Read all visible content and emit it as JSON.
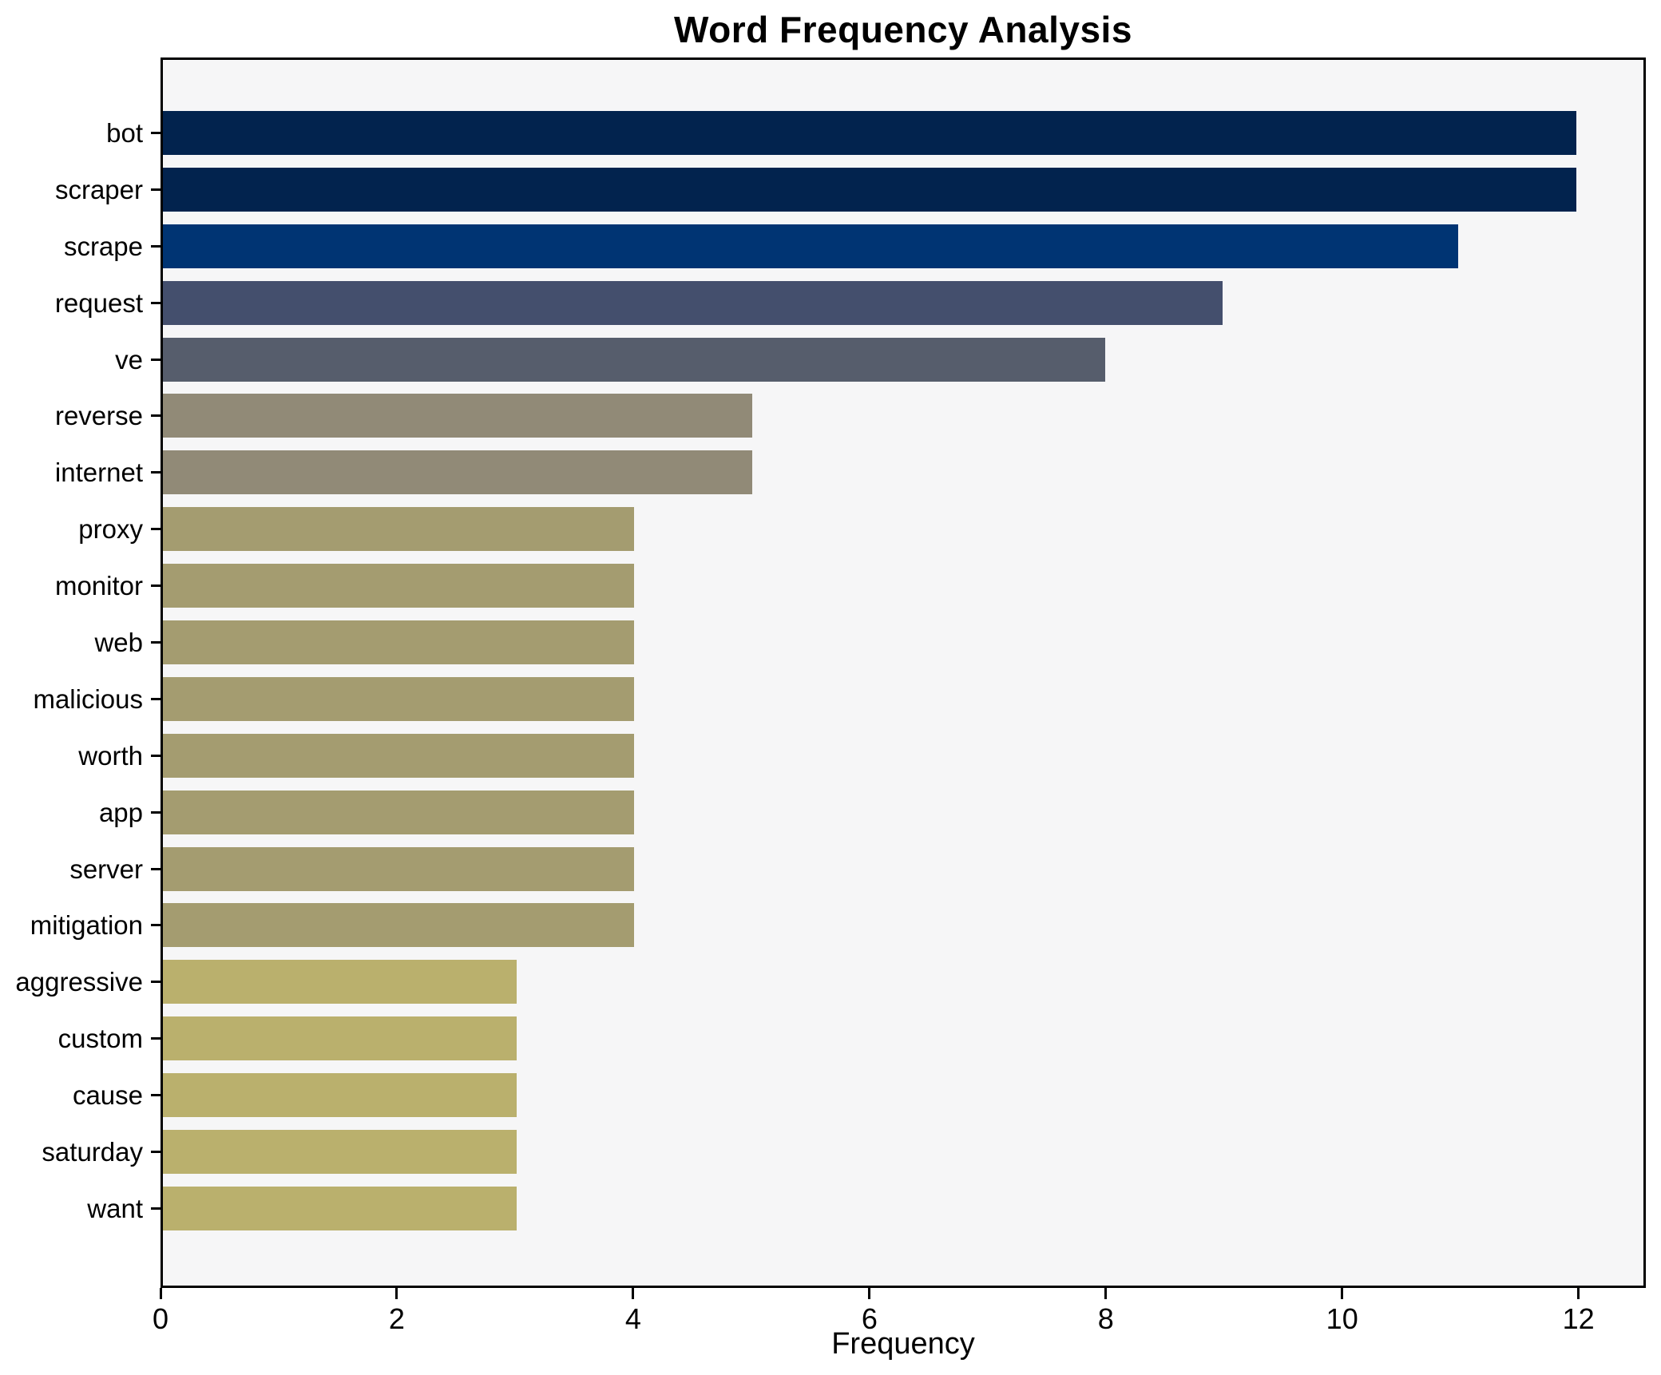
{
  "figure": {
    "title": "Word Frequency Analysis",
    "xlabel": "Frequency"
  },
  "chart_data": {
    "type": "bar",
    "orientation": "horizontal",
    "title": "Word Frequency Analysis",
    "xlabel": "Frequency",
    "ylabel": "",
    "categories": [
      "bot",
      "scraper",
      "scrape",
      "request",
      "ve",
      "reverse",
      "internet",
      "proxy",
      "monitor",
      "web",
      "malicious",
      "worth",
      "app",
      "server",
      "mitigation",
      "aggressive",
      "custom",
      "cause",
      "saturday",
      "want"
    ],
    "values": [
      12,
      12,
      11,
      9,
      8,
      5,
      5,
      4,
      4,
      4,
      4,
      4,
      4,
      4,
      4,
      3,
      3,
      3,
      3,
      3
    ],
    "bar_colors": [
      "#02234E",
      "#02234E",
      "#003473",
      "#444F6D",
      "#565D6C",
      "#918A77",
      "#918A77",
      "#A49C70",
      "#A49C70",
      "#A49C70",
      "#A49C70",
      "#A49C70",
      "#A49C70",
      "#A49C70",
      "#A49C70",
      "#BAB06D",
      "#BAB06D",
      "#BAB06D",
      "#BAB06D",
      "#BAB06D"
    ],
    "x_ticks": [
      0,
      2,
      4,
      6,
      8,
      10,
      12
    ],
    "xlim": [
      0,
      12.57
    ],
    "grid": false,
    "legend": "none",
    "plot_background": "#F6F6F7",
    "spine_color": "#000000",
    "text_color": "#000000"
  }
}
